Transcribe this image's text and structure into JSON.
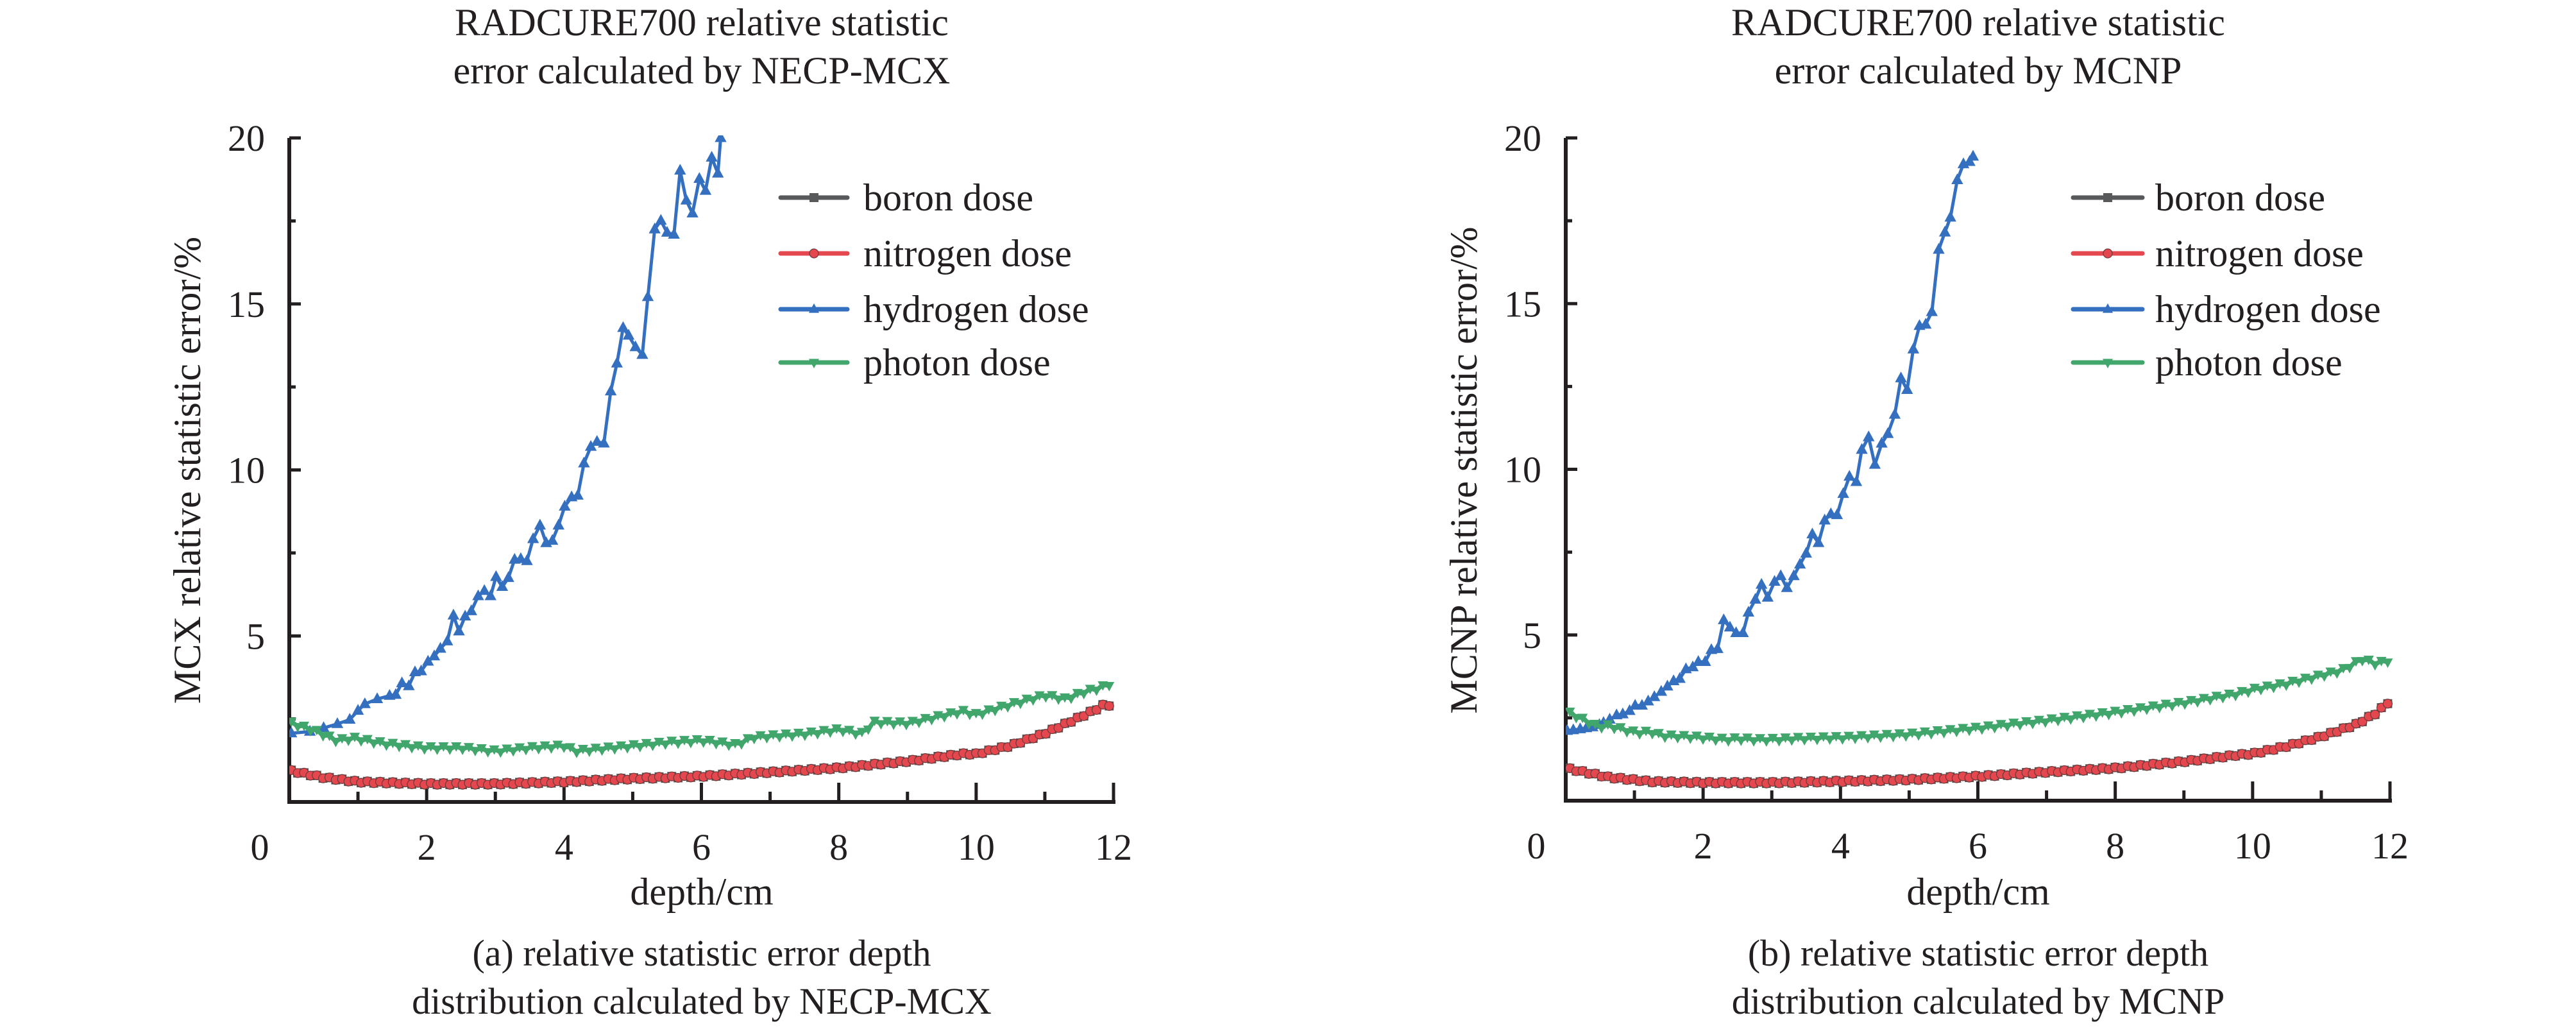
{
  "colors": {
    "boron": "#58595b",
    "nitrogen": "#e5474f",
    "hydrogen": "#3570c0",
    "photon": "#40a66c",
    "axis": "#231f20"
  },
  "chart_data": [
    {
      "type": "line",
      "title": [
        "RADCURE700 relative statistic",
        "error calculated by NECP-MCX"
      ],
      "xlabel": "depth/cm",
      "ylabel": "MCX relative statistic error/%",
      "caption": [
        "(a) relative statistic error depth",
        "distribution calculated by NECP-MCX"
      ],
      "xlim": [
        0,
        12
      ],
      "ylim": [
        0,
        20
      ],
      "xticks": [
        "0",
        "2",
        "4",
        "6",
        "8",
        "10",
        "12"
      ],
      "yticks": [
        "5",
        "10",
        "15",
        "20"
      ],
      "grid": false,
      "legend_position": "top-right",
      "legend": [
        "boron dose",
        "nitrogen dose",
        "hydrogen dose",
        "photon dose"
      ],
      "series": [
        {
          "name": "boron dose",
          "key": "boron",
          "marker": "square",
          "x": [
            0.03,
            0.5,
            1.0,
            2.0,
            3.0,
            4.0,
            5.0,
            6.0,
            7.0,
            8.0,
            9.0,
            9.8,
            10.0,
            10.5,
            11.0,
            11.5,
            11.8,
            11.9,
            12.0
          ],
          "y": [
            0.94,
            0.74,
            0.61,
            0.55,
            0.55,
            0.61,
            0.71,
            0.78,
            0.9,
            1.03,
            1.23,
            1.45,
            1.45,
            1.7,
            2.07,
            2.55,
            2.85,
            2.99,
            2.8
          ]
        },
        {
          "name": "nitrogen dose",
          "key": "nitrogen",
          "marker": "circle",
          "x": [
            0.03,
            0.5,
            1.0,
            2.0,
            3.0,
            4.0,
            5.0,
            6.0,
            7.0,
            8.0,
            9.0,
            9.8,
            10.0,
            10.5,
            11.0,
            11.5,
            11.8,
            11.9,
            12.0
          ],
          "y": [
            0.94,
            0.74,
            0.61,
            0.55,
            0.55,
            0.61,
            0.71,
            0.78,
            0.9,
            1.03,
            1.23,
            1.45,
            1.45,
            1.7,
            2.07,
            2.55,
            2.85,
            2.99,
            2.8
          ]
        },
        {
          "name": "hydrogen dose",
          "key": "hydrogen",
          "marker": "triangle-up",
          "x": [
            0.03,
            0.3,
            0.5,
            0.7,
            0.88,
            1.0,
            1.1,
            1.28,
            1.46,
            1.55,
            1.64,
            1.74,
            1.83,
            1.92,
            2.02,
            2.11,
            2.2,
            2.3,
            2.39,
            2.47,
            2.56,
            2.65,
            2.75,
            2.84,
            2.93,
            3.01,
            3.1,
            3.19,
            3.28,
            3.37,
            3.46,
            3.55,
            3.65,
            3.74,
            3.83,
            3.92,
            4.01,
            4.11,
            4.2,
            4.29,
            4.39,
            4.48,
            4.58,
            4.68,
            4.77,
            4.86,
            4.94,
            5.04,
            5.14,
            5.22,
            5.32,
            5.41,
            5.5,
            5.6,
            5.69,
            5.78,
            5.87,
            5.97,
            6.06,
            6.15,
            6.24,
            6.28
          ],
          "y": [
            2.07,
            2.12,
            2.23,
            2.35,
            2.48,
            2.75,
            2.95,
            3.1,
            3.2,
            3.23,
            3.58,
            3.49,
            3.91,
            3.94,
            4.23,
            4.39,
            4.62,
            4.84,
            5.62,
            5.14,
            5.59,
            5.75,
            6.2,
            6.36,
            6.2,
            6.78,
            6.48,
            6.75,
            7.3,
            7.32,
            7.26,
            7.92,
            8.33,
            7.8,
            7.87,
            8.33,
            8.9,
            9.18,
            9.23,
            10.2,
            10.7,
            10.85,
            10.8,
            12.37,
            13.21,
            14.28,
            14.05,
            13.7,
            13.47,
            15.21,
            17.25,
            17.51,
            17.15,
            17.09,
            19.02,
            18.12,
            17.73,
            18.77,
            18.41,
            19.41,
            18.93,
            20.0
          ]
        },
        {
          "name": "photon dose",
          "key": "photon",
          "marker": "triangle-down",
          "x": [
            0.03,
            0.38,
            0.69,
            0.94,
            1.38,
            2.0,
            2.5,
            3.01,
            3.51,
            4.01,
            4.16,
            5.01,
            5.51,
            6.01,
            6.51,
            6.76,
            7.51,
            8.02,
            8.33,
            8.52,
            9.02,
            9.52,
            9.8,
            10.0,
            10.5,
            11.0,
            11.3,
            11.6,
            11.8,
            12.0
          ],
          "y": [
            2.39,
            2.16,
            1.87,
            1.94,
            1.78,
            1.65,
            1.65,
            1.55,
            1.65,
            1.71,
            1.55,
            1.71,
            1.81,
            1.87,
            1.74,
            1.97,
            2.07,
            2.2,
            2.07,
            2.42,
            2.39,
            2.62,
            2.75,
            2.65,
            2.95,
            3.23,
            3.12,
            3.35,
            3.45,
            3.62
          ]
        }
      ]
    },
    {
      "type": "line",
      "title": [
        "RADCURE700 relative statistic",
        "error calculated by MCNP"
      ],
      "xlabel": "depth/cm",
      "ylabel": "MCNP relative statistic error/%",
      "caption": [
        "(b) relative statistic error depth",
        "distribution calculated by MCNP"
      ],
      "xlim": [
        0,
        12
      ],
      "ylim": [
        0,
        20
      ],
      "xticks": [
        "0",
        "2",
        "4",
        "6",
        "8",
        "10",
        "12"
      ],
      "yticks": [
        "5",
        "10",
        "15",
        "20"
      ],
      "grid": false,
      "legend_position": "top-right",
      "legend": [
        "boron dose",
        "nitrogen dose",
        "hydrogen dose",
        "photon dose"
      ],
      "series": [
        {
          "name": "boron dose",
          "key": "boron",
          "marker": "square",
          "x": [
            0.06,
            0.63,
            1.25,
            2.0,
            3.01,
            4.01,
            5.01,
            6.01,
            7.01,
            8.02,
            9.02,
            9.77,
            10.0,
            10.5,
            11.0,
            11.5,
            11.8,
            12.0
          ],
          "y": [
            0.96,
            0.71,
            0.58,
            0.55,
            0.55,
            0.59,
            0.64,
            0.74,
            0.87,
            0.99,
            1.19,
            1.38,
            1.42,
            1.65,
            1.94,
            2.3,
            2.65,
            3.02
          ]
        },
        {
          "name": "nitrogen dose",
          "key": "nitrogen",
          "marker": "circle",
          "x": [
            0.06,
            0.63,
            1.25,
            2.0,
            3.01,
            4.01,
            5.01,
            6.01,
            7.01,
            8.02,
            9.02,
            9.77,
            10.0,
            10.5,
            11.0,
            11.5,
            11.8,
            12.0
          ],
          "y": [
            0.96,
            0.71,
            0.58,
            0.55,
            0.55,
            0.59,
            0.64,
            0.74,
            0.87,
            0.99,
            1.19,
            1.38,
            1.42,
            1.65,
            1.94,
            2.3,
            2.65,
            3.02
          ]
        },
        {
          "name": "hydrogen dose",
          "key": "hydrogen",
          "marker": "triangle-up",
          "x": [
            0.02,
            0.11,
            0.21,
            0.3,
            0.39,
            0.49,
            0.55,
            0.64,
            0.74,
            0.83,
            0.93,
            1.01,
            1.11,
            1.2,
            1.29,
            1.39,
            1.48,
            1.57,
            1.66,
            1.75,
            1.85,
            1.93,
            2.03,
            2.12,
            2.21,
            2.3,
            2.39,
            2.48,
            2.58,
            2.66,
            2.76,
            2.85,
            2.94,
            3.04,
            3.13,
            3.22,
            3.32,
            3.41,
            3.5,
            3.59,
            3.68,
            3.77,
            3.86,
            3.95,
            4.04,
            4.13,
            4.23,
            4.31,
            4.41,
            4.5,
            4.6,
            4.69,
            4.79,
            4.88,
            4.97,
            5.06,
            5.15,
            5.24,
            5.33,
            5.43,
            5.52,
            5.6,
            5.7,
            5.79,
            5.88,
            5.93
          ],
          "y": [
            2.11,
            2.13,
            2.16,
            2.19,
            2.22,
            2.29,
            2.35,
            2.45,
            2.58,
            2.61,
            2.71,
            2.87,
            2.87,
            3.0,
            3.13,
            3.29,
            3.45,
            3.61,
            3.68,
            3.97,
            4.03,
            4.19,
            4.19,
            4.55,
            4.58,
            5.45,
            5.23,
            5.06,
            5.06,
            5.68,
            6.07,
            6.52,
            6.13,
            6.61,
            6.78,
            6.42,
            6.78,
            7.13,
            7.46,
            8.04,
            7.78,
            8.46,
            8.65,
            8.62,
            9.26,
            9.78,
            9.62,
            10.59,
            10.97,
            10.14,
            10.78,
            11.07,
            11.65,
            12.75,
            12.4,
            13.62,
            14.33,
            14.37,
            14.75,
            16.63,
            17.15,
            17.6,
            18.73,
            19.21,
            19.28,
            19.44
          ]
        },
        {
          "name": "photon dose",
          "key": "photon",
          "marker": "triangle-down",
          "x": [
            0.06,
            0.47,
            0.63,
            1.02,
            1.25,
            1.4,
            1.88,
            2.34,
            2.5,
            2.81,
            3.13,
            3.27,
            3.89,
            4.01,
            5.01,
            6.01,
            7.01,
            8.02,
            9.02,
            9.77,
            10.0,
            10.5,
            11.0,
            11.3,
            11.6,
            11.8,
            12.0
          ],
          "y": [
            2.66,
            2.25,
            2.28,
            2.07,
            2.09,
            1.98,
            1.94,
            1.86,
            1.89,
            1.86,
            1.87,
            1.89,
            1.92,
            1.92,
            2.02,
            2.21,
            2.44,
            2.69,
            2.98,
            3.24,
            3.37,
            3.55,
            3.8,
            3.95,
            4.29,
            4.15,
            4.26
          ]
        }
      ]
    }
  ]
}
